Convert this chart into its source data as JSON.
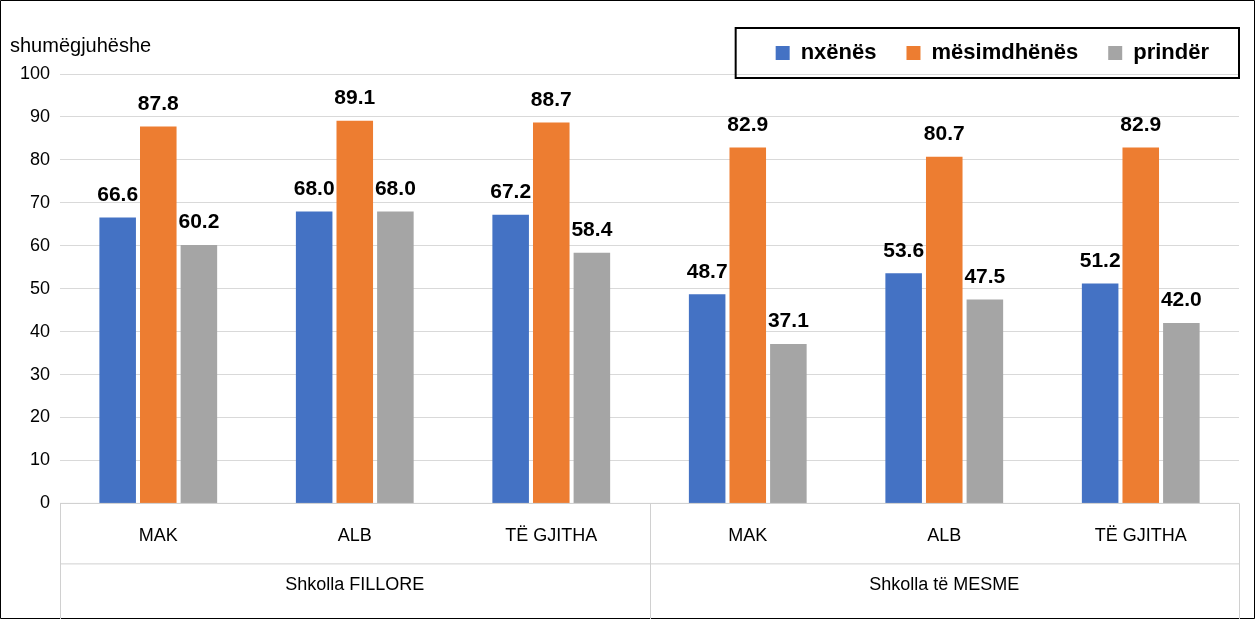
{
  "chart_data": {
    "type": "bar",
    "title": "shumëgjuhëshe",
    "categories": [
      "MAK",
      "ALB",
      "TË GJITHA",
      "MAK",
      "ALB",
      "TË GJITHA"
    ],
    "series": [
      {
        "name": "nxënës",
        "color": "#4472c4",
        "values": [
          66.6,
          68,
          67.2,
          48.7,
          53.6,
          51.2
        ],
        "value_labels": [
          "66.6",
          "68.0",
          "67.2",
          "48.7",
          "53.6",
          "51.2"
        ]
      },
      {
        "name": "mësimdhënës",
        "color": "#ed7d31",
        "values": [
          87.8,
          89.1,
          88.7,
          82.9,
          80.7,
          82.9
        ],
        "value_labels": [
          "87.8",
          "89.1",
          "88.7",
          "82.9",
          "80.7",
          "82.9"
        ]
      },
      {
        "name": "prindër",
        "color": "#a5a5a5",
        "values": [
          60.2,
          68,
          58.4,
          37.1,
          47.5,
          42
        ],
        "value_labels": [
          "60.2",
          "68.0",
          "58.4",
          "37.1",
          "47.5",
          "42.0"
        ]
      }
    ],
    "ylim": [
      0,
      100
    ],
    "yticks": [
      0,
      10,
      20,
      30,
      40,
      50,
      60,
      70,
      80,
      90,
      100
    ],
    "grid": "y",
    "legend": "top right",
    "annotations": [
      "Shkolla FILLORE",
      "Shkolla të MESME"
    ]
  }
}
